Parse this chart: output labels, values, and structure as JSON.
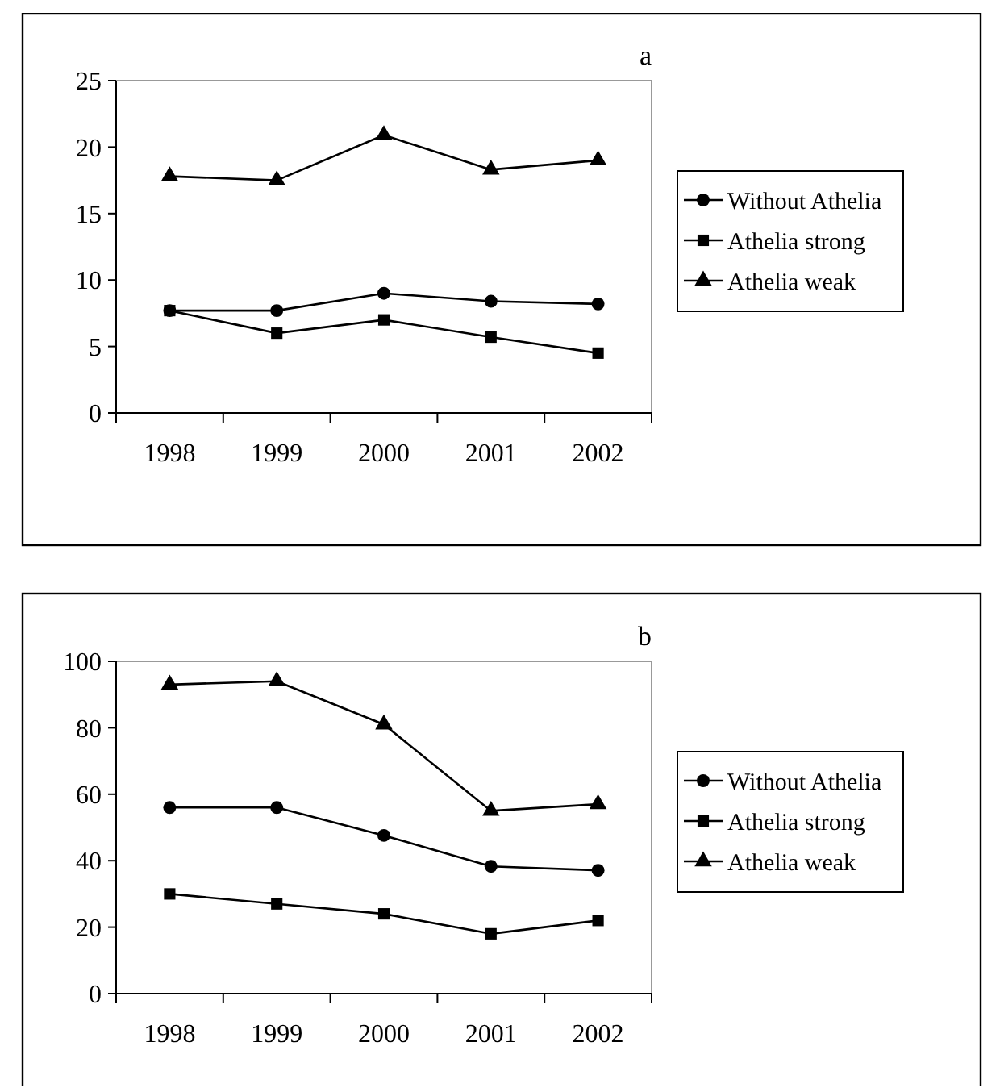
{
  "chart_data": [
    {
      "type": "line",
      "title": "a",
      "categories": [
        "1998",
        "1999",
        "2000",
        "2001",
        "2002"
      ],
      "ylim": [
        0,
        25
      ],
      "yticks": [
        0,
        5,
        10,
        15,
        20,
        25
      ],
      "legend": "right",
      "series": [
        {
          "name": "Without Athelia",
          "color": "#000000",
          "marker": "circle",
          "values": [
            7.7,
            7.7,
            9.0,
            8.4,
            8.2
          ]
        },
        {
          "name": "Athelia strong",
          "color": "#000000",
          "marker": "square",
          "values": [
            7.7,
            6.0,
            7.0,
            5.7,
            4.5
          ]
        },
        {
          "name": "Athelia weak",
          "color": "#000000",
          "marker": "triangle",
          "values": [
            17.8,
            17.5,
            20.9,
            18.3,
            19.0
          ]
        }
      ]
    },
    {
      "type": "line",
      "title": "b",
      "categories": [
        "1998",
        "1999",
        "2000",
        "2001",
        "2002"
      ],
      "ylim": [
        0,
        100
      ],
      "yticks": [
        0,
        20,
        40,
        60,
        80,
        100
      ],
      "legend": "right",
      "series": [
        {
          "name": "Without Athelia",
          "color": "#000000",
          "marker": "circle",
          "values": [
            56,
            56,
            47.6,
            38.3,
            37.1
          ]
        },
        {
          "name": "Athelia strong",
          "color": "#000000",
          "marker": "square",
          "values": [
            30,
            27,
            24,
            18,
            22
          ]
        },
        {
          "name": "Athelia weak",
          "color": "#000000",
          "marker": "triangle",
          "values": [
            93,
            94,
            81,
            55,
            57
          ]
        }
      ]
    }
  ]
}
